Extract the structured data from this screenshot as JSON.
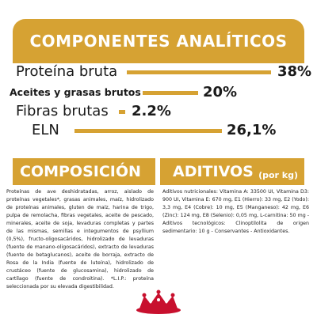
{
  "header": {
    "title": "COMPONENTES ANALÍTICOS"
  },
  "analytics": [
    {
      "label": "Proteína bruta",
      "value": "38%",
      "level": 38
    },
    {
      "label": "Aceites y grasas brutos",
      "value": "20%",
      "level": 20
    },
    {
      "label": "Fibras brutas",
      "value": "2.2%",
      "level": 2.2
    },
    {
      "label": "ELN",
      "value": "26,1%",
      "level": 26.1
    }
  ],
  "composition": {
    "title": "COMPOSICIÓN",
    "text": "Proteínas de ave deshidratadas, arroz, aislado de proteínas vegetales*, grasas animales, maíz, hidrolizado de proteínas animales, gluten de maíz, harina de trigo, pulpa de remolacha, fibras vegetales, aceite de pescado, minerales, aceite de soja, levaduras completas y partes de las mismas, semillas e integumentos de psyllium (0,5%), fructo-oligosacáridos, hidrolizado de levaduras (fuente de manano-oligosacáridos), extracto de levaduras (fuente de betaglucanos), aceite de borraja, extracto de Rosa de la India (fuente de luteína), hidrolizado de crustáceo (fuente de glucosamina), hidrolizado de cartílago (fuente de condroitina). *L.I.P.: proteína seleccionada por su elevada digestibilidad."
  },
  "additives": {
    "title": "ADITIVOS",
    "unit": "(por kg)",
    "text": "Aditivos nutricionales: Vitamina A: 33500 UI, Vitamina D3: 900 UI, Vitamina E: 670 mg, E1 (Hierro): 33 mg, E2 (Yodo): 3,3 mg, E4 (Cobre): 10 mg, E5 (Manganeso): 42 mg, E6 (Zinc): 124 mg, E8 (Selenio): 0,05 mg, L-carnitina: 50 mg - Aditivos tecnológicos: Clinoptilolita de origen sedimentario: 10 g - Conservantes - Antioxidantes."
  },
  "colors": {
    "accent": "#d6a233",
    "logo": "#c8102e"
  },
  "logo_icon": "royal-canin-crown-logo"
}
